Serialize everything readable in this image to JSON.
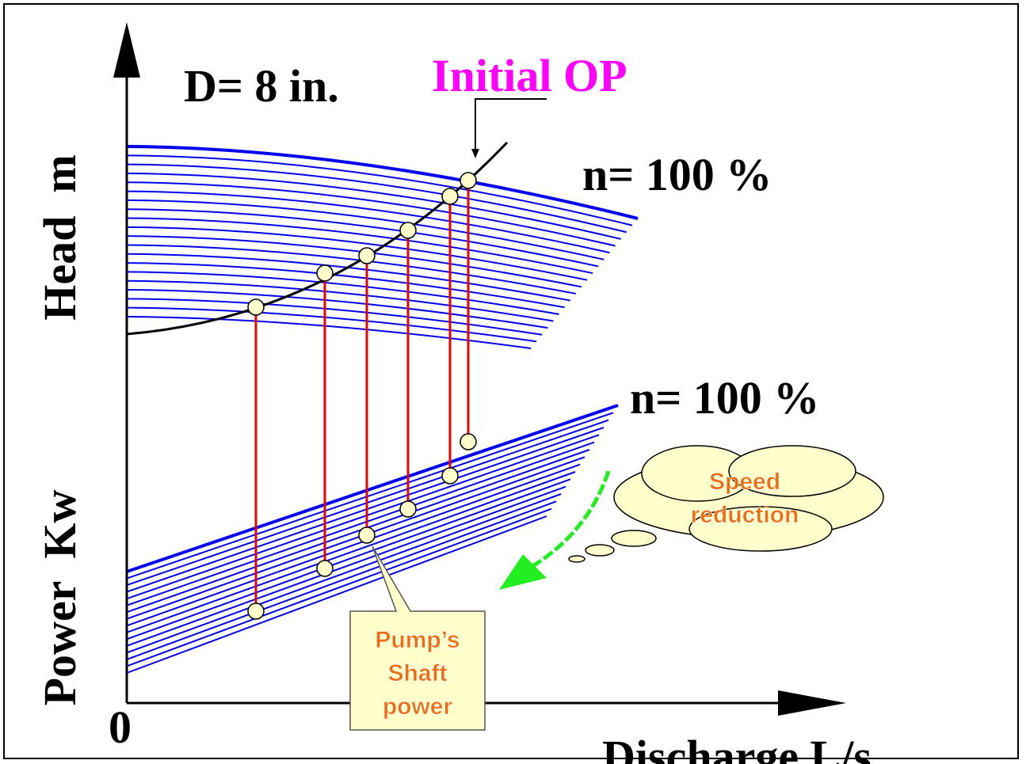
{
  "diagram": {
    "title": "D= 8 in.",
    "initial_op": "Initial OP",
    "head_curve_label": "n= 100 %",
    "power_curve_label": "n= 100 %",
    "head_axis_label": "Head  m",
    "power_axis_label": "Power  Kw",
    "origin_label": "0",
    "x_axis_label": "Discharge L/s",
    "cloud_text": [
      "Speed",
      "reduction"
    ],
    "callout_text": [
      "Pump’s",
      "Shaft",
      "power"
    ]
  }
}
